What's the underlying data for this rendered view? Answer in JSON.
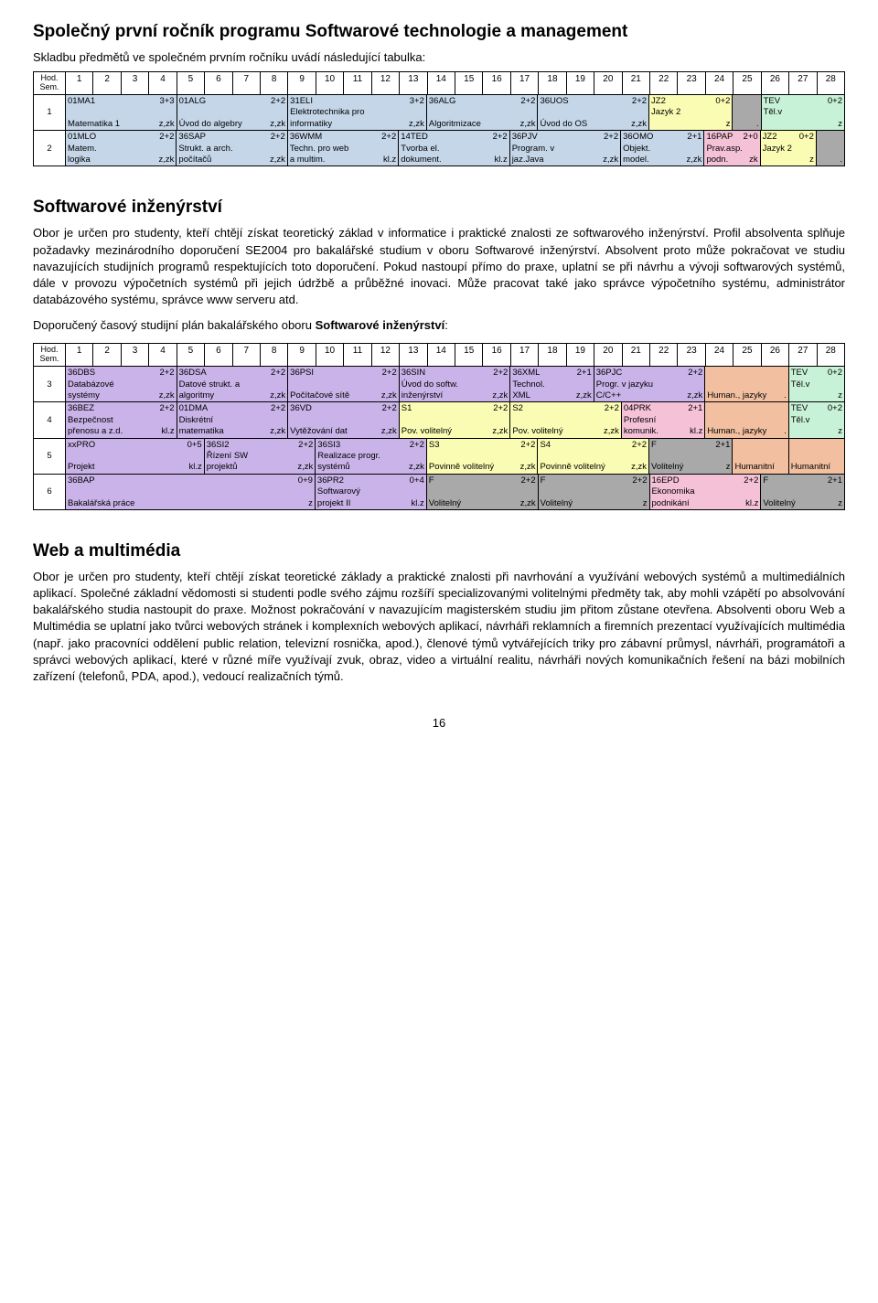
{
  "title1": "Společný první ročník programu Softwarové technologie a management",
  "intro1": "Skladbu předmětů ve společném prvním ročníku uvádí následující tabulka:",
  "hod": "Hod.\nSem.",
  "cols": [
    "1",
    "2",
    "3",
    "4",
    "5",
    "6",
    "7",
    "8",
    "9",
    "10",
    "11",
    "12",
    "13",
    "14",
    "15",
    "16",
    "17",
    "18",
    "19",
    "20",
    "21",
    "22",
    "23",
    "24",
    "25",
    "26",
    "27",
    "28"
  ],
  "colors": {
    "blue": "#c5d6e9",
    "green": "#c8f2d7",
    "yellow": "#f9fcb2",
    "pink": "#f4c1d6",
    "violet": "#c9b3e8",
    "grey": "#a9a9a9",
    "orange": "#f2c0a1",
    "white": "#ffffff"
  },
  "plan1": [
    {
      "sem": "1",
      "cells": [
        {
          "w": 4,
          "c": "blue",
          "code": "01MA1",
          "cr": "3+3",
          "mid": "",
          "bl": "Matematika 1",
          "br": "z,zk"
        },
        {
          "w": 4,
          "c": "blue",
          "code": "01ALG",
          "cr": "2+2",
          "mid": "",
          "bl": "Úvod do algebry",
          "br": "z,zk"
        },
        {
          "w": 5,
          "c": "blue",
          "code": "31ELI",
          "cr": "3+2",
          "mid": "Elektrotechnika pro",
          "bl": "informatiky",
          "br": "z,zk"
        },
        {
          "w": 4,
          "c": "blue",
          "code": "36ALG",
          "cr": "2+2",
          "mid": "",
          "bl": "Algoritmizace",
          "br": "z,zk"
        },
        {
          "w": 4,
          "c": "blue",
          "code": "36UOS",
          "cr": "2+2",
          "mid": "",
          "bl": "Úvod do OS",
          "br": "z,zk"
        },
        {
          "w": 3,
          "c": "yellow",
          "code": "JZ2",
          "cr": "0+2",
          "mid": "Jazyk 2",
          "bl": "",
          "br": "z"
        },
        {
          "w": 1,
          "c": "grey",
          "code": "",
          "cr": "",
          "mid": "",
          "bl": "",
          "br": "."
        },
        {
          "w": 3,
          "c": "green",
          "code": "TEV",
          "cr": "0+2",
          "mid": "Těl.v",
          "bl": "",
          "br": "z"
        }
      ]
    },
    {
      "sem": "2",
      "cells": [
        {
          "w": 4,
          "c": "blue",
          "code": "01MLO",
          "cr": "2+2",
          "mid": "Matem.",
          "bl": "logika",
          "br": "z,zk"
        },
        {
          "w": 4,
          "c": "blue",
          "code": "36SAP",
          "cr": "2+2",
          "mid": "Strukt. a arch.",
          "bl": "počítačů",
          "br": "z,zk"
        },
        {
          "w": 4,
          "c": "blue",
          "code": "36WMM",
          "cr": "2+2",
          "mid": "Techn. pro web",
          "bl": "a multim.",
          "br": "kl.z"
        },
        {
          "w": 4,
          "c": "blue",
          "code": "14TED",
          "cr": "2+2",
          "mid": "Tvorba el.",
          "bl": "dokument.",
          "br": "kl.z"
        },
        {
          "w": 4,
          "c": "blue",
          "code": "36PJV",
          "cr": "2+2",
          "mid": "Program. v",
          "bl": "jaz.Java",
          "br": "z,zk"
        },
        {
          "w": 3,
          "c": "blue",
          "code": "36OMO",
          "cr": "2+1",
          "mid": "Objekt.",
          "bl": "model.",
          "br": "z,zk"
        },
        {
          "w": 2,
          "c": "pink",
          "code": "16PAP",
          "cr": "2+0",
          "mid": "Prav.asp.",
          "bl": "podn.",
          "br": "zk"
        },
        {
          "w": 2,
          "c": "yellow",
          "code": "JZ2",
          "cr": "0+2",
          "mid": "Jazyk 2",
          "bl": "",
          "br": "z"
        },
        {
          "w": 1,
          "c": "grey",
          "code": "",
          "cr": "",
          "mid": "",
          "bl": "",
          "br": "."
        }
      ]
    }
  ],
  "si_title": "Softwarové inženýrství",
  "si_text": "Obor je určen pro studenty, kteří chtějí získat teoretický základ v informatice i praktické znalosti ze softwarového inženýrství. Profil absolventa splňuje požadavky mezinárodního doporučení SE2004 pro bakalářské studium v oboru Softwarové inženýrství. Absolvent proto může pokračovat ve studiu navazujících studijních programů respektujících toto doporučení. Pokud nastoupí přímo do praxe, uplatní se při návrhu a vývoji softwarových systémů, dále v provozu výpočetních systémů při jejich údržbě a průběžné inovaci. Může pracovat také jako správce výpočetního systému, administrátor databázového systému, správce www serveru atd.",
  "si_plan_label_a": "Doporučený časový studijní plán bakalářského oboru ",
  "si_plan_label_b": "Softwarové inženýrství",
  "si_plan_label_c": ":",
  "plan2": [
    {
      "sem": "3",
      "cells": [
        {
          "w": 4,
          "c": "violet",
          "code": "36DBS",
          "cr": "2+2",
          "mid": "Databázové",
          "bl": "systémy",
          "br": "z,zk"
        },
        {
          "w": 4,
          "c": "violet",
          "code": "36DSA",
          "cr": "2+2",
          "mid": "Datové strukt. a",
          "bl": "algoritmy",
          "br": "z,zk"
        },
        {
          "w": 4,
          "c": "violet",
          "code": "36PSI",
          "cr": "2+2",
          "mid": "",
          "bl": "Počítačové sítě",
          "br": "z,zk"
        },
        {
          "w": 4,
          "c": "violet",
          "code": "36SIN",
          "cr": "2+2",
          "mid": "Úvod do softw.",
          "bl": "inženýrství",
          "br": "z,zk"
        },
        {
          "w": 3,
          "c": "violet",
          "code": "36XML",
          "cr": "2+1",
          "mid": "Technol.",
          "bl": "XML",
          "br": "z,zk"
        },
        {
          "w": 4,
          "c": "violet",
          "code": "36PJC",
          "cr": "2+2",
          "mid": "Progr. v jazyku",
          "bl": "C/C++",
          "br": "z,zk"
        },
        {
          "w": 3,
          "c": "orange",
          "code": "",
          "cr": "",
          "mid": "",
          "bl": "Human., jazyky",
          "br": "."
        },
        {
          "w": 2,
          "c": "green",
          "code": "TEV",
          "cr": "0+2",
          "mid": "Těl.v",
          "bl": "",
          "br": "z"
        }
      ]
    },
    {
      "sem": "4",
      "cells": [
        {
          "w": 4,
          "c": "violet",
          "code": "36BEZ",
          "cr": "2+2",
          "mid": "Bezpečnost",
          "bl": "přenosu a z.d.",
          "br": "kl.z"
        },
        {
          "w": 4,
          "c": "violet",
          "code": "01DMA",
          "cr": "2+2",
          "mid": "Diskrétní",
          "bl": "matematika",
          "br": "z,zk"
        },
        {
          "w": 4,
          "c": "violet",
          "code": "36VD",
          "cr": "2+2",
          "mid": "",
          "bl": "Vytěžování dat",
          "br": "z,zk"
        },
        {
          "w": 4,
          "c": "yellow",
          "code": "S1",
          "cr": "2+2",
          "mid": "",
          "bl": "Pov. volitelný",
          "br": "z,zk"
        },
        {
          "w": 4,
          "c": "yellow",
          "code": "S2",
          "cr": "2+2",
          "mid": "",
          "bl": "Pov. volitelný",
          "br": "z,zk"
        },
        {
          "w": 3,
          "c": "pink",
          "code": "04PRK",
          "cr": "2+1",
          "mid": "Profesní",
          "bl": "komunik.",
          "br": "kl.z"
        },
        {
          "w": 3,
          "c": "orange",
          "code": "",
          "cr": "",
          "mid": "",
          "bl": "Human., jazyky",
          "br": "."
        },
        {
          "w": 2,
          "c": "green",
          "code": "TEV",
          "cr": "0+2",
          "mid": "Těl.v",
          "bl": "",
          "br": "z"
        }
      ]
    },
    {
      "sem": "5",
      "cells": [
        {
          "w": 5,
          "c": "violet",
          "code": "xxPRO",
          "cr": "0+5",
          "mid": "",
          "bl": "Projekt",
          "br": "kl.z"
        },
        {
          "w": 4,
          "c": "violet",
          "code": "36SI2",
          "cr": "2+2",
          "mid": "Řízení SW",
          "bl": "projektů",
          "br": "z,zk"
        },
        {
          "w": 4,
          "c": "violet",
          "code": "36SI3",
          "cr": "2+2",
          "mid": "Realizace progr.",
          "bl": "systémů",
          "br": "z,zk"
        },
        {
          "w": 4,
          "c": "yellow",
          "code": "S3",
          "cr": "2+2",
          "mid": "",
          "bl": "Povinně volitelný",
          "br": "z,zk"
        },
        {
          "w": 4,
          "c": "yellow",
          "code": "S4",
          "cr": "2+2",
          "mid": "",
          "bl": "Povinně volitelný",
          "br": "z,zk"
        },
        {
          "w": 3,
          "c": "grey",
          "code": "F",
          "cr": "2+1",
          "mid": "",
          "bl": "Volitelný",
          "br": "z"
        },
        {
          "w": 2,
          "c": "orange",
          "code": "",
          "cr": "",
          "mid": "",
          "bl": "Humanitní",
          "br": ""
        },
        {
          "w": 2,
          "c": "orange",
          "code": "",
          "cr": "",
          "mid": "",
          "bl": "Humanitní",
          "br": ""
        }
      ]
    },
    {
      "sem": "6",
      "cells": [
        {
          "w": 9,
          "c": "violet",
          "code": "36BAP",
          "cr": "0+9",
          "mid": "",
          "bl": "Bakalářská práce",
          "br": "z"
        },
        {
          "w": 4,
          "c": "violet",
          "code": "36PR2",
          "cr": "0+4",
          "mid": "Softwarový",
          "bl": "projekt II",
          "br": "kl.z"
        },
        {
          "w": 4,
          "c": "grey",
          "code": "F",
          "cr": "2+2",
          "mid": "",
          "bl": "Volitelný",
          "br": "z,zk"
        },
        {
          "w": 4,
          "c": "grey",
          "code": "F",
          "cr": "2+2",
          "mid": "",
          "bl": "Volitelný",
          "br": "z"
        },
        {
          "w": 4,
          "c": "pink",
          "code": "16EPD",
          "cr": "2+2",
          "mid": "Ekonomika",
          "bl": "podnikání",
          "br": "kl.z"
        },
        {
          "w": 3,
          "c": "grey",
          "code": "F",
          "cr": "2+1",
          "mid": "",
          "bl": "Volitelný",
          "br": "z"
        }
      ]
    }
  ],
  "wm_title": "Web a multimédia",
  "wm_text": "Obor je určen pro studenty, kteří chtějí získat teoretické základy a praktické znalosti při navrhování a využívání webových systémů a multimediálních aplikací. Společné základní vědomosti si studenti podle svého zájmu rozšíří specializovanými volitelnými předměty tak, aby mohli vzápětí po absolvování bakalářského studia nastoupit do praxe. Možnost pokračování v navazujícím magisterském studiu jim přitom zůstane otevřena. Absolventi oboru Web a Multimédia se uplatní jako tvůrci webových stránek i komplexních webových aplikací, návrháři reklamních a firemních prezentací využívajících multimédia (např. jako pracovníci oddělení public relation, televizní rosnička, apod.), členové týmů vytvářejících triky pro zábavní průmysl, návrháři, programátoři a správci webových aplikací, které v různé míře využívají zvuk, obraz, video a virtuální realitu, návrháři nových komunikačních řešení na bázi mobilních zařízení (telefonů, PDA, apod.), vedoucí realizačních týmů.",
  "page": "16"
}
